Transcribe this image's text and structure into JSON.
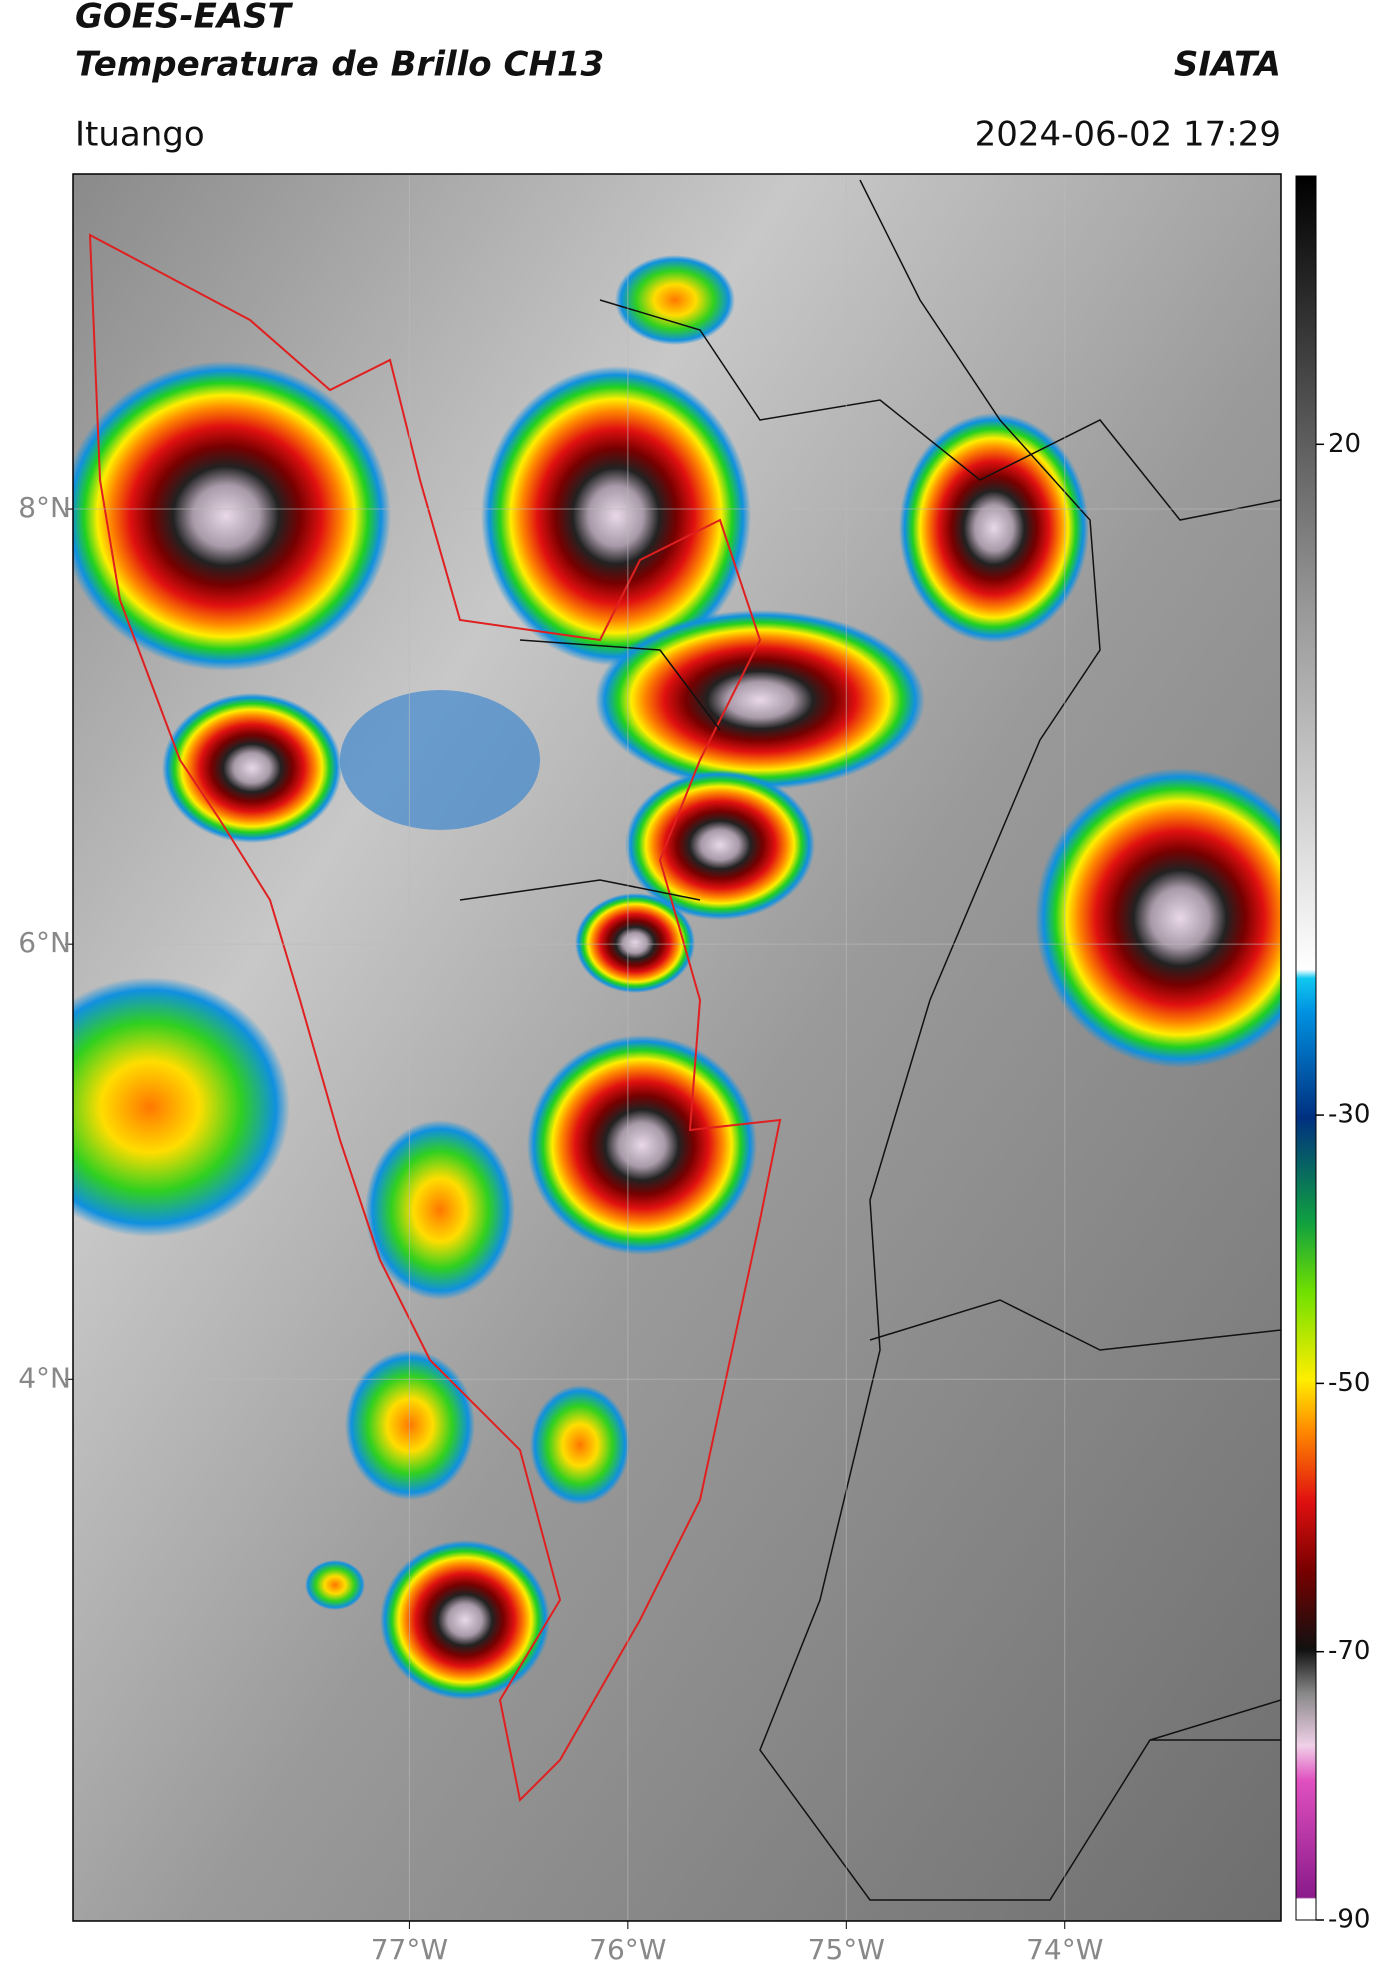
{
  "header": {
    "title": "GOES-EAST",
    "subtitle": "Temperatura de Brillo CH13",
    "source": "SIATA",
    "location": "Ituango",
    "timestamp": "2024-06-02 17:29"
  },
  "map": {
    "xlim": [
      -78.54,
      -73.01
    ],
    "ylim": [
      1.51,
      9.54
    ],
    "xticks": [
      {
        "value": -77,
        "label": "77°W"
      },
      {
        "value": -76,
        "label": "76°W"
      },
      {
        "value": -75,
        "label": "75°W"
      },
      {
        "value": -74,
        "label": "74°W"
      }
    ],
    "yticks": [
      {
        "value": 4,
        "label": "4°N"
      },
      {
        "value": 6,
        "label": "6°N"
      },
      {
        "value": 8,
        "label": "8°N"
      }
    ]
  },
  "colorbar": {
    "lim": [
      -90,
      40
    ],
    "ticks": [
      -90,
      -70,
      -50,
      -30,
      20
    ]
  }
}
